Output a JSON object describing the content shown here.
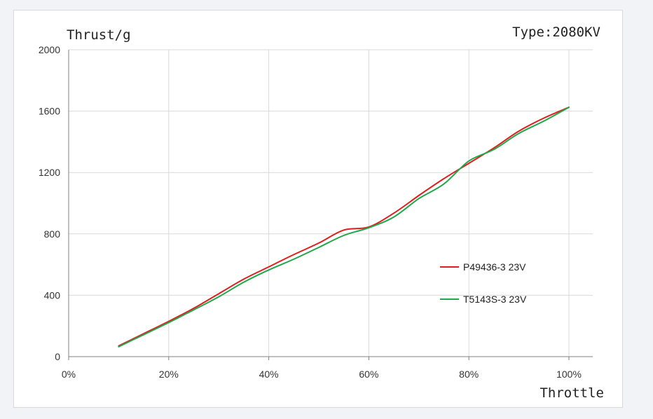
{
  "chart_data": {
    "type": "line",
    "title": "",
    "annotation": "Type:2080KV",
    "ylabel": "Thrust/g",
    "xlabel": "Throttle",
    "xlim": [
      0,
      100
    ],
    "ylim": [
      0,
      2000
    ],
    "x_ticks": [
      0,
      20,
      40,
      60,
      80,
      100
    ],
    "x_tick_labels": [
      "0%",
      "20%",
      "40%",
      "60%",
      "80%",
      "100%"
    ],
    "y_ticks": [
      0,
      400,
      800,
      1200,
      1600,
      2000
    ],
    "y_tick_labels": [
      "0",
      "400",
      "800",
      "1200",
      "1600",
      "2000"
    ],
    "grid": true,
    "legend_position": "right",
    "x": [
      10,
      15,
      20,
      25,
      30,
      35,
      40,
      45,
      50,
      55,
      60,
      65,
      70,
      75,
      80,
      85,
      90,
      95,
      100
    ],
    "series": [
      {
        "name": "P49436-3 23V",
        "color": "#e01e1e",
        "values": [
          70,
          150,
          230,
          315,
          410,
          505,
          585,
          665,
          740,
          825,
          845,
          935,
          1050,
          1160,
          1260,
          1360,
          1470,
          1555,
          1625
        ]
      },
      {
        "name": "T5143S-3 23V",
        "color": "#1fa84a",
        "values": [
          65,
          143,
          222,
          305,
          390,
          485,
          565,
          635,
          712,
          790,
          840,
          910,
          1030,
          1125,
          1275,
          1350,
          1455,
          1535,
          1625
        ]
      }
    ]
  }
}
